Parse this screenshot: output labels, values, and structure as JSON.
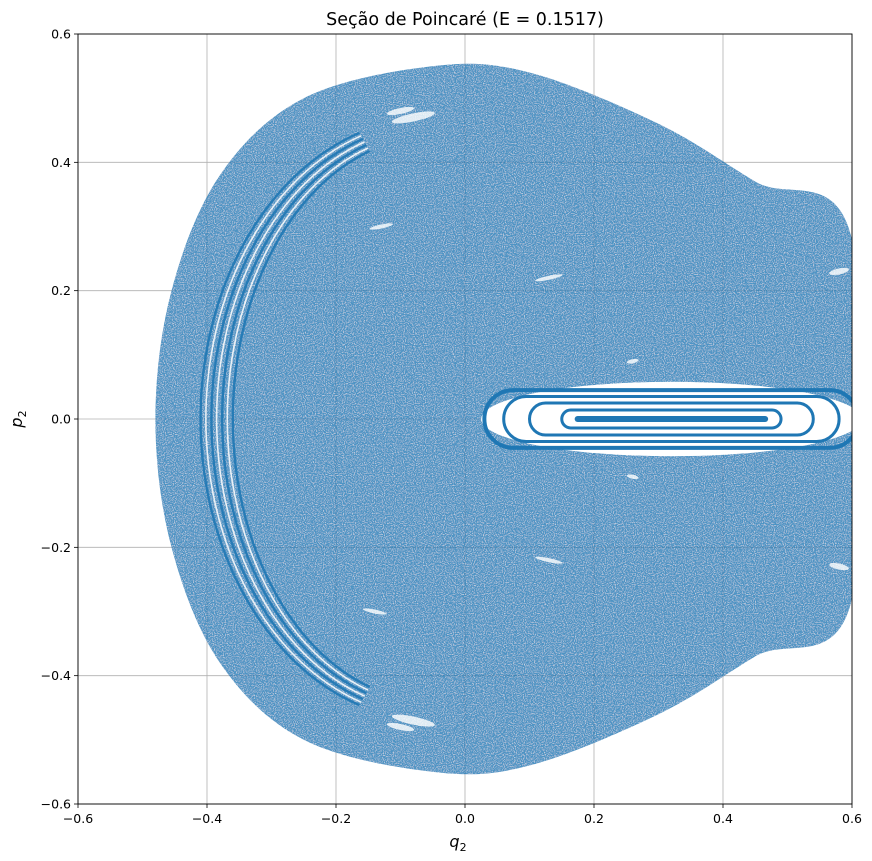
{
  "chart_data": {
    "type": "scatter",
    "title": "Seção de Poincaré (E = 0.1517)",
    "xlabel": {
      "main": "q",
      "sub": "2"
    },
    "ylabel": {
      "main": "p",
      "sub": "2"
    },
    "xlim": [
      -0.6,
      0.6
    ],
    "ylim": [
      -0.6,
      0.6
    ],
    "x_ticks": [
      -0.6,
      -0.4,
      -0.2,
      0.0,
      0.2,
      0.4,
      0.6
    ],
    "x_tick_labels": [
      "−0.6",
      "−0.4",
      "−0.2",
      "0.0",
      "0.2",
      "0.4",
      "0.6"
    ],
    "y_ticks": [
      -0.6,
      -0.4,
      -0.2,
      0.0,
      0.2,
      0.4,
      0.6
    ],
    "y_tick_labels": [
      "−0.6",
      "−0.4",
      "−0.2",
      "0.0",
      "0.2",
      "0.4",
      "0.6"
    ],
    "grid": true,
    "marker_color": "#1f77b4",
    "region": {
      "description_points": [
        [
          -0.48,
          0.0
        ],
        [
          -0.455,
          0.2
        ],
        [
          -0.38,
          0.38
        ],
        [
          -0.25,
          0.5
        ],
        [
          -0.05,
          0.55
        ],
        [
          0.1,
          0.54
        ],
        [
          0.3,
          0.46
        ],
        [
          0.45,
          0.37
        ],
        [
          0.6,
          0.28
        ],
        [
          0.6,
          -0.28
        ],
        [
          0.45,
          -0.37
        ],
        [
          0.3,
          -0.46
        ],
        [
          0.1,
          -0.54
        ],
        [
          -0.05,
          -0.55
        ],
        [
          -0.25,
          -0.5
        ],
        [
          -0.38,
          -0.38
        ],
        [
          -0.455,
          -0.2
        ]
      ]
    },
    "island": {
      "center": [
        0.32,
        0.0
      ],
      "rings": [
        {
          "half_width": 0.29,
          "half_height": 0.045
        },
        {
          "half_width": 0.26,
          "half_height": 0.035
        },
        {
          "half_width": 0.22,
          "half_height": 0.025
        },
        {
          "half_width": 0.17,
          "half_height": 0.014
        }
      ]
    },
    "crescent": {
      "center_x": -0.05,
      "outer_extent": [
        -0.41,
        0.47
      ],
      "inner_extent": [
        -0.36,
        0.44
      ]
    }
  }
}
